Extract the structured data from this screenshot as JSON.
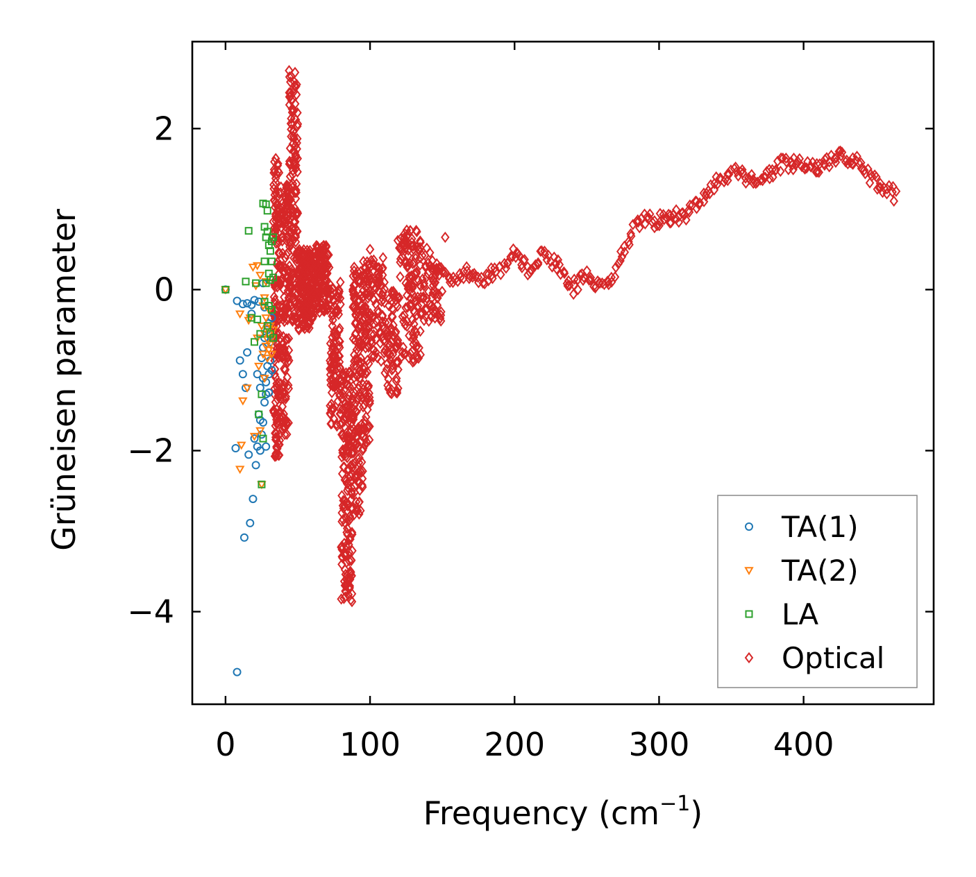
{
  "chart_data": {
    "type": "scatter",
    "title": "",
    "xlabel": "Frequency (cm",
    "xlabel_sup": "−1",
    "xlabel_close": ")",
    "ylabel": "Grüneisen parameter",
    "xlim": [
      -23,
      490
    ],
    "ylim": [
      -5.15,
      3.08
    ],
    "xticks": [
      0,
      100,
      200,
      300,
      400
    ],
    "xtick_labels": [
      "0",
      "100",
      "200",
      "300",
      "400"
    ],
    "yticks": [
      -4,
      -2,
      0,
      2
    ],
    "ytick_labels": [
      "−4",
      "−2",
      "0",
      "2"
    ],
    "grid": false,
    "legend_position": "bottom-right",
    "series": [
      {
        "name": "TA(1)",
        "marker": "circle",
        "color": "#1f77b4",
        "points": [
          [
            0,
            0.0
          ],
          [
            8,
            -0.14
          ],
          [
            10,
            -0.88
          ],
          [
            12,
            -1.05
          ],
          [
            13,
            -3.08
          ],
          [
            14,
            -1.22
          ],
          [
            15,
            -0.78
          ],
          [
            15,
            -0.17
          ],
          [
            16,
            -2.05
          ],
          [
            17,
            -2.9
          ],
          [
            18,
            -0.3
          ],
          [
            18,
            -0.19
          ],
          [
            19,
            -2.6
          ],
          [
            20,
            -1.85
          ],
          [
            20,
            -0.13
          ],
          [
            21,
            -2.18
          ],
          [
            22,
            -1.95
          ],
          [
            22,
            -1.05
          ],
          [
            23,
            -0.15
          ],
          [
            23,
            -1.55
          ],
          [
            24,
            -1.22
          ],
          [
            24,
            -2.0
          ],
          [
            25,
            -0.85
          ],
          [
            25,
            -1.8
          ],
          [
            26,
            -0.72
          ],
          [
            26,
            -1.1
          ],
          [
            26,
            -1.65
          ],
          [
            27,
            -1.4
          ],
          [
            27,
            -0.6
          ],
          [
            27,
            -0.22
          ],
          [
            28,
            -1.3
          ],
          [
            28,
            -1.95
          ],
          [
            28,
            -1.15
          ],
          [
            29,
            -0.5
          ],
          [
            29,
            -0.95
          ],
          [
            30,
            -0.42
          ],
          [
            30,
            -1.05
          ],
          [
            30,
            -1.28
          ],
          [
            31,
            -0.88
          ],
          [
            31,
            -0.65
          ],
          [
            32,
            -0.35
          ],
          [
            32,
            -1.0
          ],
          [
            26,
            0.08
          ],
          [
            7,
            -1.97
          ],
          [
            24,
            -1.62
          ],
          [
            8,
            -4.75
          ],
          [
            12,
            -0.18
          ]
        ]
      },
      {
        "name": "TA(2)",
        "marker": "triangle-down",
        "color": "#ff7f0e",
        "points": [
          [
            0,
            0.0
          ],
          [
            10,
            -0.3
          ],
          [
            11,
            -1.93
          ],
          [
            12,
            -1.38
          ],
          [
            15,
            -1.22
          ],
          [
            17,
            -0.35
          ],
          [
            19,
            0.28
          ],
          [
            20,
            -1.82
          ],
          [
            21,
            0.05
          ],
          [
            22,
            0.3
          ],
          [
            22,
            -0.6
          ],
          [
            23,
            -0.95
          ],
          [
            24,
            0.18
          ],
          [
            24,
            -1.75
          ],
          [
            25,
            -0.45
          ],
          [
            25,
            -2.42
          ],
          [
            26,
            -0.2
          ],
          [
            26,
            -0.8
          ],
          [
            27,
            -0.1
          ],
          [
            27,
            -0.55
          ],
          [
            27,
            -1.1
          ],
          [
            28,
            -0.7
          ],
          [
            28,
            -0.35
          ],
          [
            28,
            0.1
          ],
          [
            29,
            -0.62
          ],
          [
            29,
            -0.85
          ],
          [
            29,
            -0.48
          ],
          [
            30,
            -0.55
          ],
          [
            30,
            -0.75
          ],
          [
            30,
            -0.25
          ],
          [
            31,
            -0.68
          ],
          [
            31,
            -0.45
          ],
          [
            32,
            -0.6
          ],
          [
            32,
            -0.8
          ],
          [
            33,
            -0.5
          ],
          [
            10,
            -2.23
          ],
          [
            16,
            -0.38
          ]
        ]
      },
      {
        "name": "LA",
        "marker": "square",
        "color": "#2ca02c",
        "points": [
          [
            0,
            0.0
          ],
          [
            14,
            0.1
          ],
          [
            16,
            0.73
          ],
          [
            18,
            -0.35
          ],
          [
            20,
            -0.65
          ],
          [
            21,
            0.08
          ],
          [
            22,
            -0.37
          ],
          [
            23,
            -1.55
          ],
          [
            25,
            -2.42
          ],
          [
            25,
            -1.3
          ],
          [
            26,
            1.07
          ],
          [
            27,
            0.78
          ],
          [
            27,
            0.35
          ],
          [
            27,
            -0.15
          ],
          [
            28,
            1.06
          ],
          [
            28,
            0.65
          ],
          [
            28,
            0.08
          ],
          [
            29,
            0.98
          ],
          [
            29,
            0.72
          ],
          [
            29,
            -0.45
          ],
          [
            30,
            0.55
          ],
          [
            30,
            0.2
          ],
          [
            30,
            -0.2
          ],
          [
            31,
            0.48
          ],
          [
            31,
            0.12
          ],
          [
            31,
            -0.55
          ],
          [
            32,
            0.6
          ],
          [
            32,
            0.35
          ],
          [
            32,
            -0.25
          ],
          [
            33,
            0.65
          ],
          [
            33,
            0.15
          ],
          [
            33,
            -0.6
          ],
          [
            26,
            -1.85
          ],
          [
            24,
            -0.55
          ]
        ]
      },
      {
        "name": "Optical",
        "marker": "diamond",
        "color": "#d62728",
        "generator": true
      }
    ]
  },
  "legend": {
    "items": [
      "TA(1)",
      "TA(2)",
      "LA",
      "Optical"
    ]
  }
}
